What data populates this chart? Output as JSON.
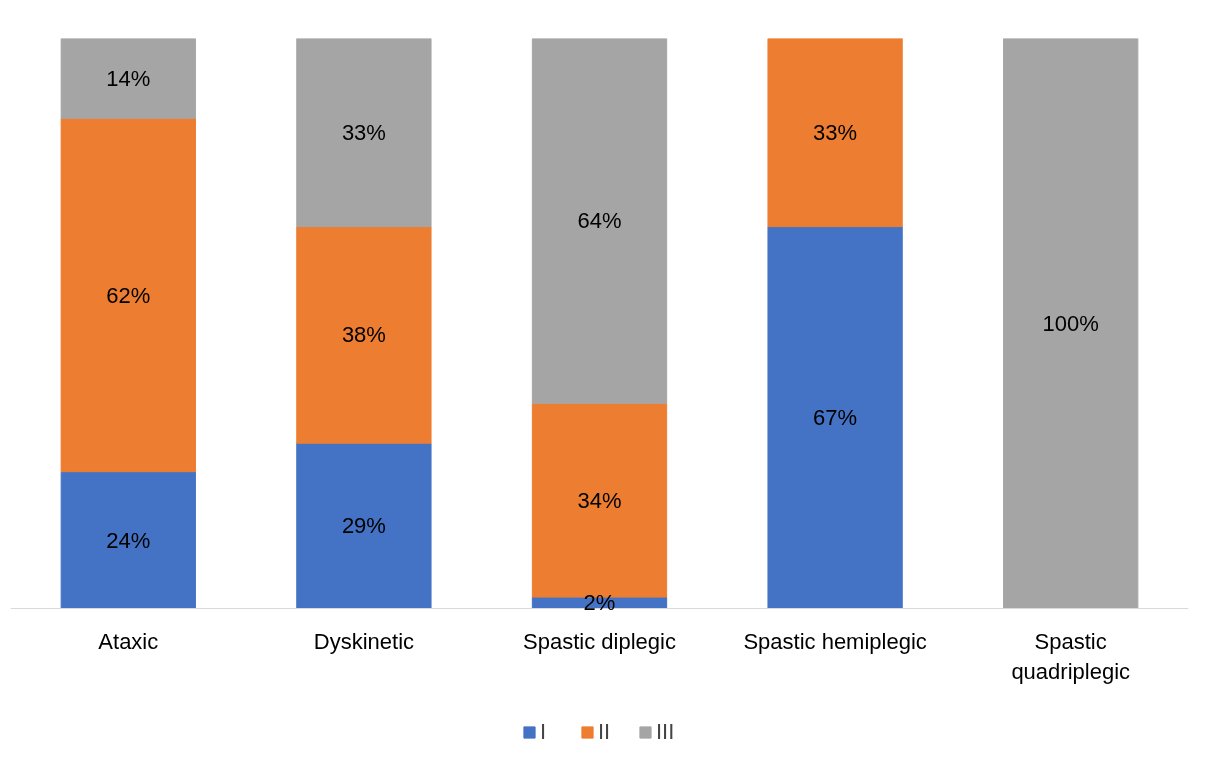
{
  "chart_data": {
    "type": "bar",
    "stacked": true,
    "data_labels": true,
    "legend": "bottom",
    "grid": false,
    "categories": [
      "Ataxic",
      "Dyskinetic",
      "Spastic diplegic",
      "Spastic hemiplegic",
      "Spastic quadriplegic"
    ],
    "series": [
      {
        "name": "I",
        "color": "#4472c4",
        "values": [
          24,
          29,
          2,
          67,
          null
        ],
        "value_labels": [
          "24%",
          "29%",
          "2%",
          "67%",
          null
        ]
      },
      {
        "name": "II",
        "color": "#ed7d31",
        "values": [
          62,
          38,
          34,
          33,
          null
        ],
        "value_labels": [
          "62%",
          "38%",
          "34%",
          "33%",
          null
        ]
      },
      {
        "name": "III",
        "color": "#a5a5a5",
        "values": [
          14,
          33,
          64,
          null,
          100
        ],
        "value_labels": [
          "14%",
          "33%",
          "64%",
          null,
          "100%"
        ]
      }
    ]
  }
}
